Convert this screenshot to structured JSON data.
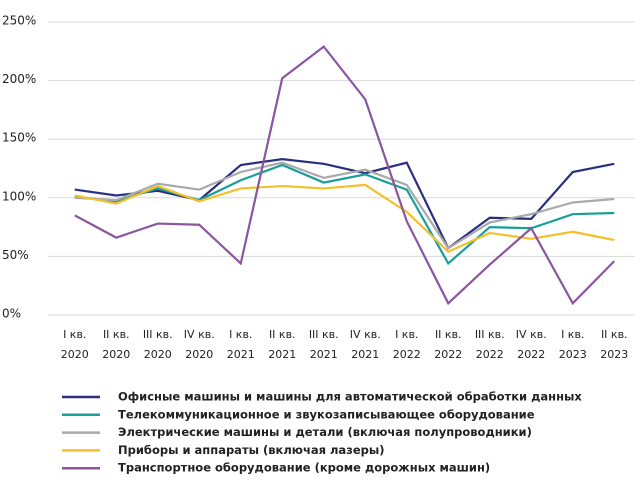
{
  "chart_data": {
    "type": "line",
    "categories": [
      [
        "I кв.",
        "2020"
      ],
      [
        "II кв.",
        "2020"
      ],
      [
        "III кв.",
        "2020"
      ],
      [
        "IV кв.",
        "2020"
      ],
      [
        "I кв.",
        "2021"
      ],
      [
        "II кв.",
        "2021"
      ],
      [
        "III кв.",
        "2021"
      ],
      [
        "IV кв.",
        "2021"
      ],
      [
        "I кв.",
        "2022"
      ],
      [
        "II кв.",
        "2022"
      ],
      [
        "III кв.",
        "2022"
      ],
      [
        "IV кв.",
        "2022"
      ],
      [
        "I кв.",
        "2023"
      ],
      [
        "II кв.",
        "2023"
      ]
    ],
    "series": [
      {
        "name": "Офисные машины и машины для автоматической обработки данных",
        "color": "#2b2f7f",
        "values": [
          107,
          102,
          106,
          98,
          128,
          133,
          129,
          121,
          130,
          57,
          83,
          82,
          122,
          129
        ]
      },
      {
        "name": "Телекоммуникационное и звукозаписывающее оборудование",
        "color": "#1a9e98",
        "values": [
          101,
          97,
          108,
          98,
          115,
          128,
          113,
          120,
          107,
          44,
          75,
          74,
          86,
          87
        ]
      },
      {
        "name": "Электрические машины и детали (включая полупроводники)",
        "color": "#aaaaaa",
        "values": [
          100,
          98,
          112,
          107,
          122,
          130,
          117,
          124,
          111,
          57,
          79,
          86,
          96,
          99
        ]
      },
      {
        "name": "Приборы и аппараты (включая лазеры)",
        "color": "#f5bf2a",
        "values": [
          102,
          95,
          110,
          97,
          108,
          110,
          108,
          111,
          88,
          54,
          70,
          65,
          71,
          64
        ]
      },
      {
        "name": "Транспортное оборудование (кроме дорожных машин)",
        "color": "#8b55a0",
        "values": [
          85,
          66,
          78,
          77,
          44,
          202,
          229,
          184,
          80,
          10,
          43,
          74,
          10,
          46
        ]
      }
    ],
    "ylim": [
      0,
      250
    ],
    "yticks": [
      {
        "value": 0,
        "label": "0%"
      },
      {
        "value": 50,
        "label": "50%"
      },
      {
        "value": 100,
        "label": "100%"
      },
      {
        "value": 150,
        "label": "150%"
      },
      {
        "value": 200,
        "label": "200%"
      },
      {
        "value": 250,
        "label": "250%"
      }
    ],
    "grid": true,
    "legend": "bottom"
  }
}
